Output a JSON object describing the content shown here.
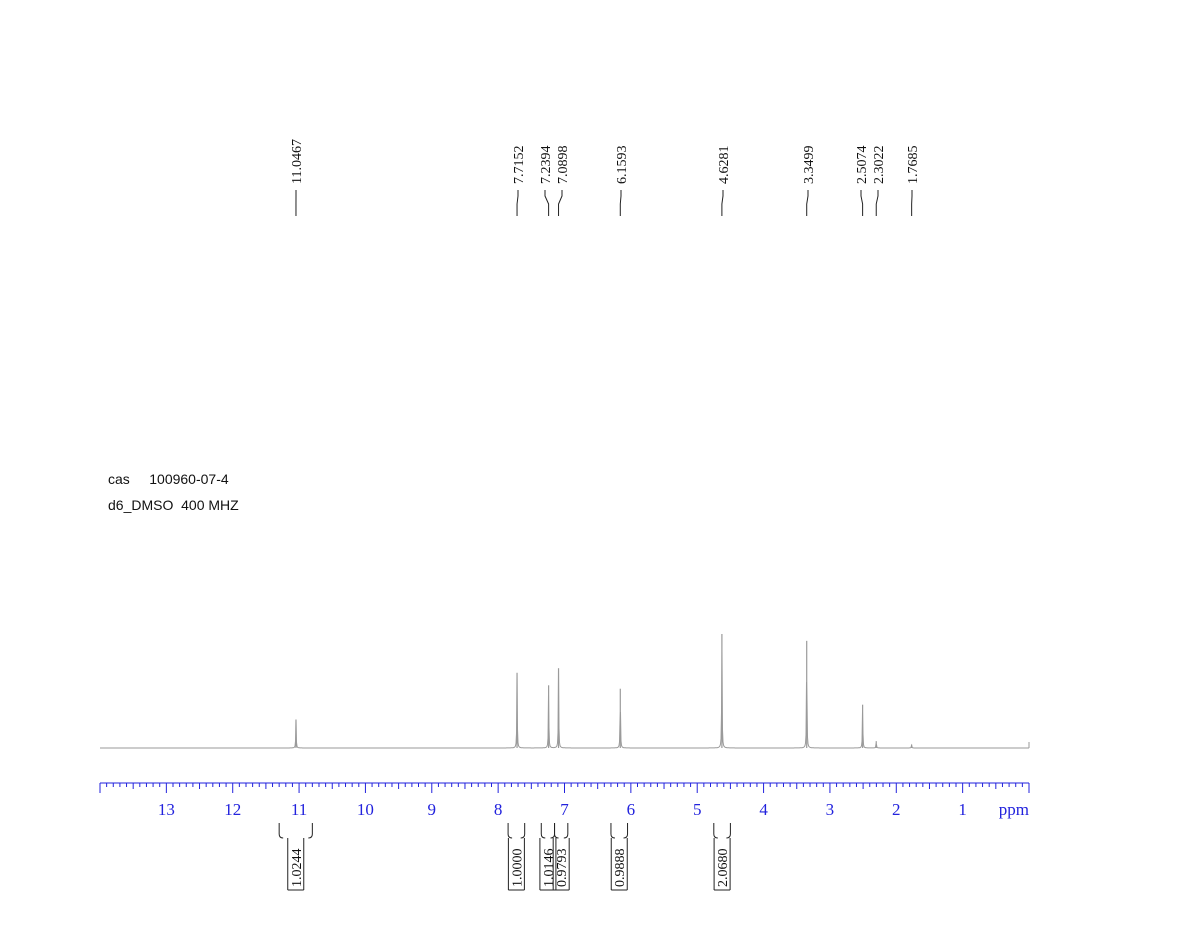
{
  "sample": {
    "cas_label": "cas",
    "cas_number": "100960-07-4",
    "solvent_line": "d6_DMSO  400 MHZ"
  },
  "chart_data": {
    "type": "line",
    "title": "",
    "xlabel": "ppm",
    "ylabel": "",
    "xlim": [
      14,
      0
    ],
    "x_reversed": true,
    "grid": false,
    "colors": {
      "spectrum": "#9a9a9a",
      "axis": "#2222dd",
      "labels": "#111111"
    },
    "x_ticks": [
      {
        "value": 13,
        "label": "13"
      },
      {
        "value": 12,
        "label": "12"
      },
      {
        "value": 11,
        "label": "11"
      },
      {
        "value": 10,
        "label": "10"
      },
      {
        "value": 9,
        "label": "9"
      },
      {
        "value": 8,
        "label": "8"
      },
      {
        "value": 7,
        "label": "7"
      },
      {
        "value": 6,
        "label": "6"
      },
      {
        "value": 5,
        "label": "5"
      },
      {
        "value": 4,
        "label": "4"
      },
      {
        "value": 3,
        "label": "3"
      },
      {
        "value": 2,
        "label": "2"
      },
      {
        "value": 1,
        "label": "1"
      }
    ],
    "peaks": [
      {
        "shift": 11.0467,
        "label": "11.0467",
        "intensity": 0.25
      },
      {
        "shift": 7.7152,
        "label": "7.7152",
        "intensity": 0.66
      },
      {
        "shift": 7.2394,
        "label": "7.2394",
        "intensity": 0.55
      },
      {
        "shift": 7.0898,
        "label": "7.0898",
        "intensity": 0.7
      },
      {
        "shift": 6.1593,
        "label": "6.1593",
        "intensity": 0.52
      },
      {
        "shift": 4.6281,
        "label": "4.6281",
        "intensity": 1.0
      },
      {
        "shift": 3.3499,
        "label": "3.3499",
        "intensity": 0.94
      },
      {
        "shift": 2.5074,
        "label": "2.5074",
        "intensity": 0.38
      },
      {
        "shift": 2.3022,
        "label": "2.3022",
        "intensity": 0.06
      },
      {
        "shift": 1.7685,
        "label": "1.7685",
        "intensity": 0.03
      }
    ],
    "integrals": [
      {
        "from": 11.3,
        "to": 10.8,
        "label": "1.0244"
      },
      {
        "from": 7.85,
        "to": 7.6,
        "label": "1.0000"
      },
      {
        "from": 7.35,
        "to": 7.15,
        "label": "1.0146"
      },
      {
        "from": 7.15,
        "to": 6.95,
        "label": "0.9793"
      },
      {
        "from": 6.3,
        "to": 6.05,
        "label": "0.9888"
      },
      {
        "from": 4.75,
        "to": 4.5,
        "label": "2.0680"
      }
    ]
  }
}
